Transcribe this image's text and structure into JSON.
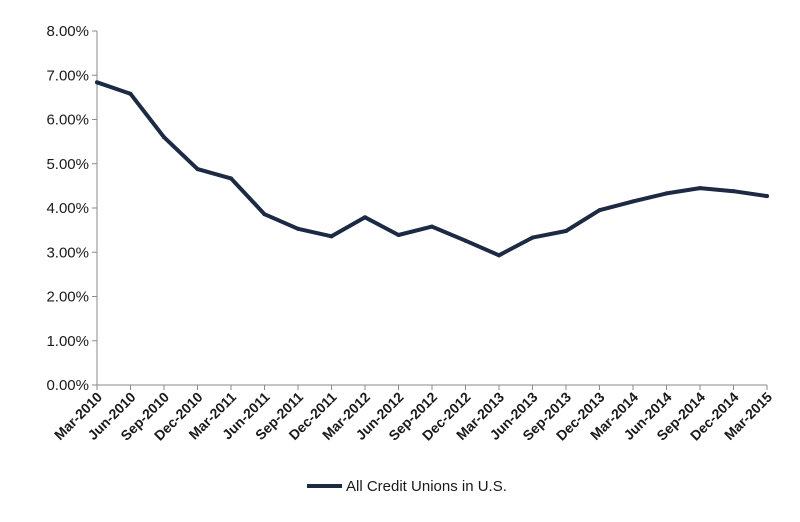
{
  "chart_data": {
    "type": "line",
    "title": "",
    "xlabel": "",
    "ylabel": "",
    "categories": [
      "Mar-2010",
      "Jun-2010",
      "Sep-2010",
      "Dec-2010",
      "Mar-2011",
      "Jun-2011",
      "Sep-2011",
      "Dec-2011",
      "Mar-2012",
      "Jun-2012",
      "Sep-2012",
      "Dec-2012",
      "Mar-2013",
      "Jun-2013",
      "Sep-2013",
      "Dec-2013",
      "Mar-2014",
      "Jun-2014",
      "Sep-2014",
      "Dec-2014",
      "Mar-2015"
    ],
    "series": [
      {
        "name": "All Credit Unions in U.S.",
        "values": [
          6.84,
          6.58,
          5.6,
          4.88,
          4.67,
          3.86,
          3.53,
          3.36,
          3.79,
          3.39,
          3.58,
          3.26,
          2.93,
          3.33,
          3.48,
          3.95,
          4.15,
          4.33,
          4.45,
          4.38,
          4.27
        ],
        "color": "#1c2a44"
      }
    ],
    "ylim": [
      0,
      8
    ],
    "y_ticks": [
      "0.00%",
      "1.00%",
      "2.00%",
      "3.00%",
      "4.00%",
      "5.00%",
      "6.00%",
      "7.00%",
      "8.00%"
    ],
    "grid": false,
    "legend_position": "bottom"
  }
}
